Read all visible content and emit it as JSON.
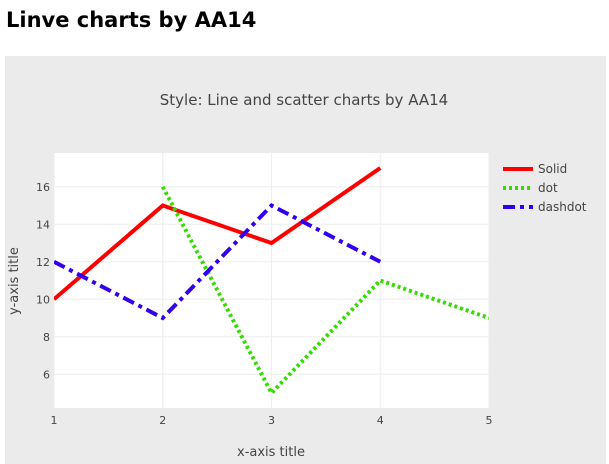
{
  "page": {
    "heading": "Linve charts by AA14"
  },
  "chart_data": {
    "type": "line",
    "title": "Style: Line and scatter charts by AA14",
    "xlabel": "x-axis title",
    "ylabel": "y-axis title",
    "xlim": [
      1,
      5
    ],
    "ylim": [
      4.2,
      17.8
    ],
    "x_ticks": [
      1,
      2,
      3,
      4,
      5
    ],
    "y_ticks": [
      6,
      8,
      10,
      12,
      14,
      16
    ],
    "grid": true,
    "legend_position": "top-right",
    "series": [
      {
        "name": "Solid",
        "x": [
          1,
          2,
          3,
          4
        ],
        "y": [
          10,
          15,
          13,
          17
        ],
        "color": "#ff0000",
        "dash": "solid"
      },
      {
        "name": "dot",
        "x": [
          2,
          3,
          4,
          5
        ],
        "y": [
          16,
          5,
          11,
          9
        ],
        "color": "#33dd00",
        "dash": "dot"
      },
      {
        "name": "dashdot",
        "x": [
          1,
          2,
          3,
          4
        ],
        "y": [
          12,
          9,
          15,
          12
        ],
        "color": "#3300ee",
        "dash": "dashdot"
      }
    ]
  }
}
